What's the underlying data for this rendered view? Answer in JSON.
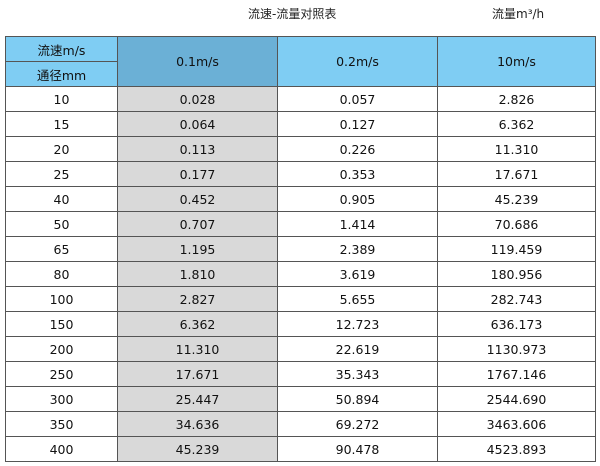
{
  "title": "流速-流量对照表",
  "unit": "流量m³/h",
  "header": {
    "speed_label": "流速m/s",
    "dia_label": "通径mm",
    "cols": [
      "0.1m/s",
      "0.2m/s",
      "10m/s"
    ]
  },
  "colors": {
    "header": "#7fcdf3",
    "selected_header": "#6bb0d6",
    "highlight_column": "#d9d9d9"
  },
  "rows": [
    [
      "10",
      "0.028",
      "0.057",
      "2.826"
    ],
    [
      "15",
      "0.064",
      "0.127",
      "6.362"
    ],
    [
      "20",
      "0.113",
      "0.226",
      "11.310"
    ],
    [
      "25",
      "0.177",
      "0.353",
      "17.671"
    ],
    [
      "40",
      "0.452",
      "0.905",
      "45.239"
    ],
    [
      "50",
      "0.707",
      "1.414",
      "70.686"
    ],
    [
      "65",
      "1.195",
      "2.389",
      "119.459"
    ],
    [
      "80",
      "1.810",
      "3.619",
      "180.956"
    ],
    [
      "100",
      "2.827",
      "5.655",
      "282.743"
    ],
    [
      "150",
      "6.362",
      "12.723",
      "636.173"
    ],
    [
      "200",
      "11.310",
      "22.619",
      "1130.973"
    ],
    [
      "250",
      "17.671",
      "35.343",
      "1767.146"
    ],
    [
      "300",
      "25.447",
      "50.894",
      "2544.690"
    ],
    [
      "350",
      "34.636",
      "69.272",
      "3463.606"
    ],
    [
      "400",
      "45.239",
      "90.478",
      "4523.893"
    ]
  ]
}
